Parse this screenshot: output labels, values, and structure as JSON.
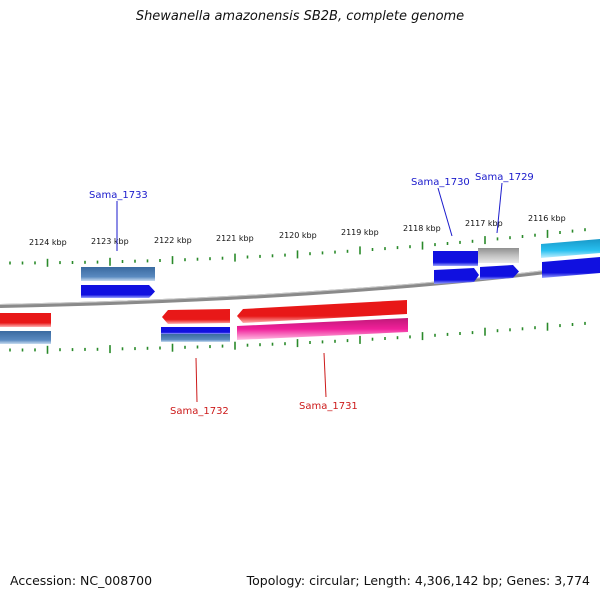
{
  "title": "Shewanella amazonensis SB2B, complete genome",
  "accession": "Accession: NC_008700",
  "stats": "Topology: circular; Length: 4,306,142 bp; Genes: 3,774",
  "colors": {
    "backbone": "#7f7f7f",
    "tick": "#2a8a2a",
    "label_blue": "#1a1acc",
    "label_red": "#cc1a1a",
    "blue_gene": "#1010e0",
    "steel_gene": "#4a7ab0",
    "red_gene": "#e81818",
    "pink_gene": "#f0209a",
    "cyan_gene": "#20b8e8",
    "gray_gene": "#b8b8b8"
  },
  "kbp_labels": [
    {
      "text": "2124 kbp"
    },
    {
      "text": "2123 kbp"
    },
    {
      "text": "2122 kbp"
    },
    {
      "text": "2121 kbp"
    },
    {
      "text": "2120 kbp"
    },
    {
      "text": "2119 kbp"
    },
    {
      "text": "2118 kbp"
    },
    {
      "text": "2117 kbp"
    },
    {
      "text": "2116 kbp"
    }
  ],
  "gene_labels": [
    {
      "id": "sama-1733",
      "text": "Sama_1733",
      "color": "label_blue"
    },
    {
      "id": "sama-1730",
      "text": "Sama_1730",
      "color": "label_blue"
    },
    {
      "id": "sama-1729",
      "text": "Sama_1729",
      "color": "label_blue"
    },
    {
      "id": "sama-1732",
      "text": "Sama_1732",
      "color": "label_red"
    },
    {
      "id": "sama-1731",
      "text": "Sama_1731",
      "color": "label_red"
    }
  ]
}
